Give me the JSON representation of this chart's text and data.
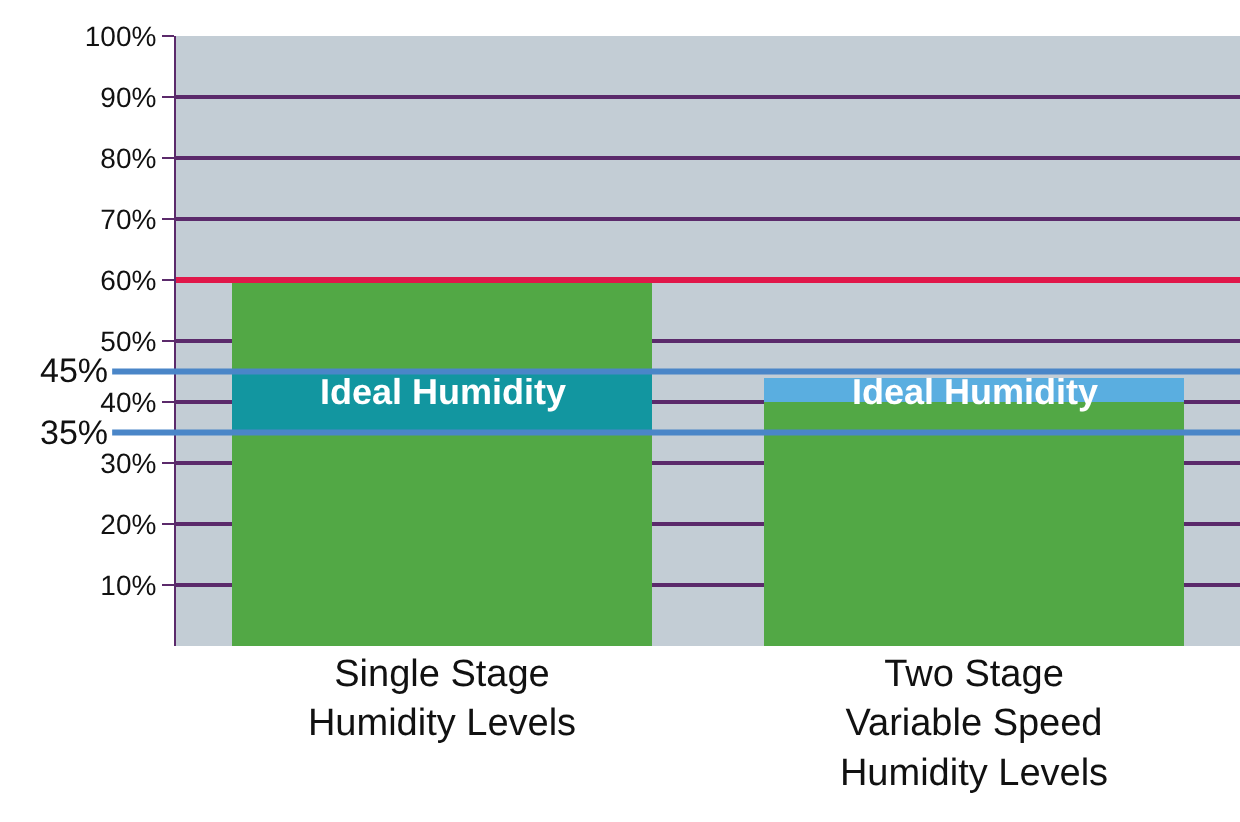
{
  "chart_data": {
    "type": "bar",
    "categories": [
      "Single Stage Humidity Levels",
      "Two Stage Variable Speed Humidity Levels"
    ],
    "stacked": true,
    "series": [
      {
        "color": "#52a845",
        "values": [
          35,
          40
        ]
      },
      {
        "colors": [
          "#1296a0",
          "#5aaee0"
        ],
        "values": [
          10,
          4
        ]
      },
      {
        "color": "#52a845",
        "values": [
          15,
          0
        ]
      }
    ],
    "ylim": [
      0,
      100
    ],
    "yticks": [
      {
        "value": 10,
        "label": "10%"
      },
      {
        "value": 20,
        "label": "20%"
      },
      {
        "value": 30,
        "label": "30%"
      },
      {
        "value": 40,
        "label": "40%"
      },
      {
        "value": 50,
        "label": "50%"
      },
      {
        "value": 60,
        "label": "60%"
      },
      {
        "value": 70,
        "label": "70%"
      },
      {
        "value": 80,
        "label": "80%"
      },
      {
        "value": 90,
        "label": "90%"
      },
      {
        "value": 100,
        "label": "100%"
      }
    ],
    "grid": "y",
    "ref_lines": [
      {
        "axis": "y",
        "value": 60,
        "label": null,
        "color": "#e0174a"
      },
      {
        "axis": "y",
        "value": 45,
        "label": "45%",
        "color": "#4a86c8"
      },
      {
        "axis": "y",
        "value": 35,
        "label": "35%",
        "color": "#4a86c8"
      }
    ],
    "annotations": [
      "Ideal Humidity",
      "Ideal Humidity"
    ]
  }
}
